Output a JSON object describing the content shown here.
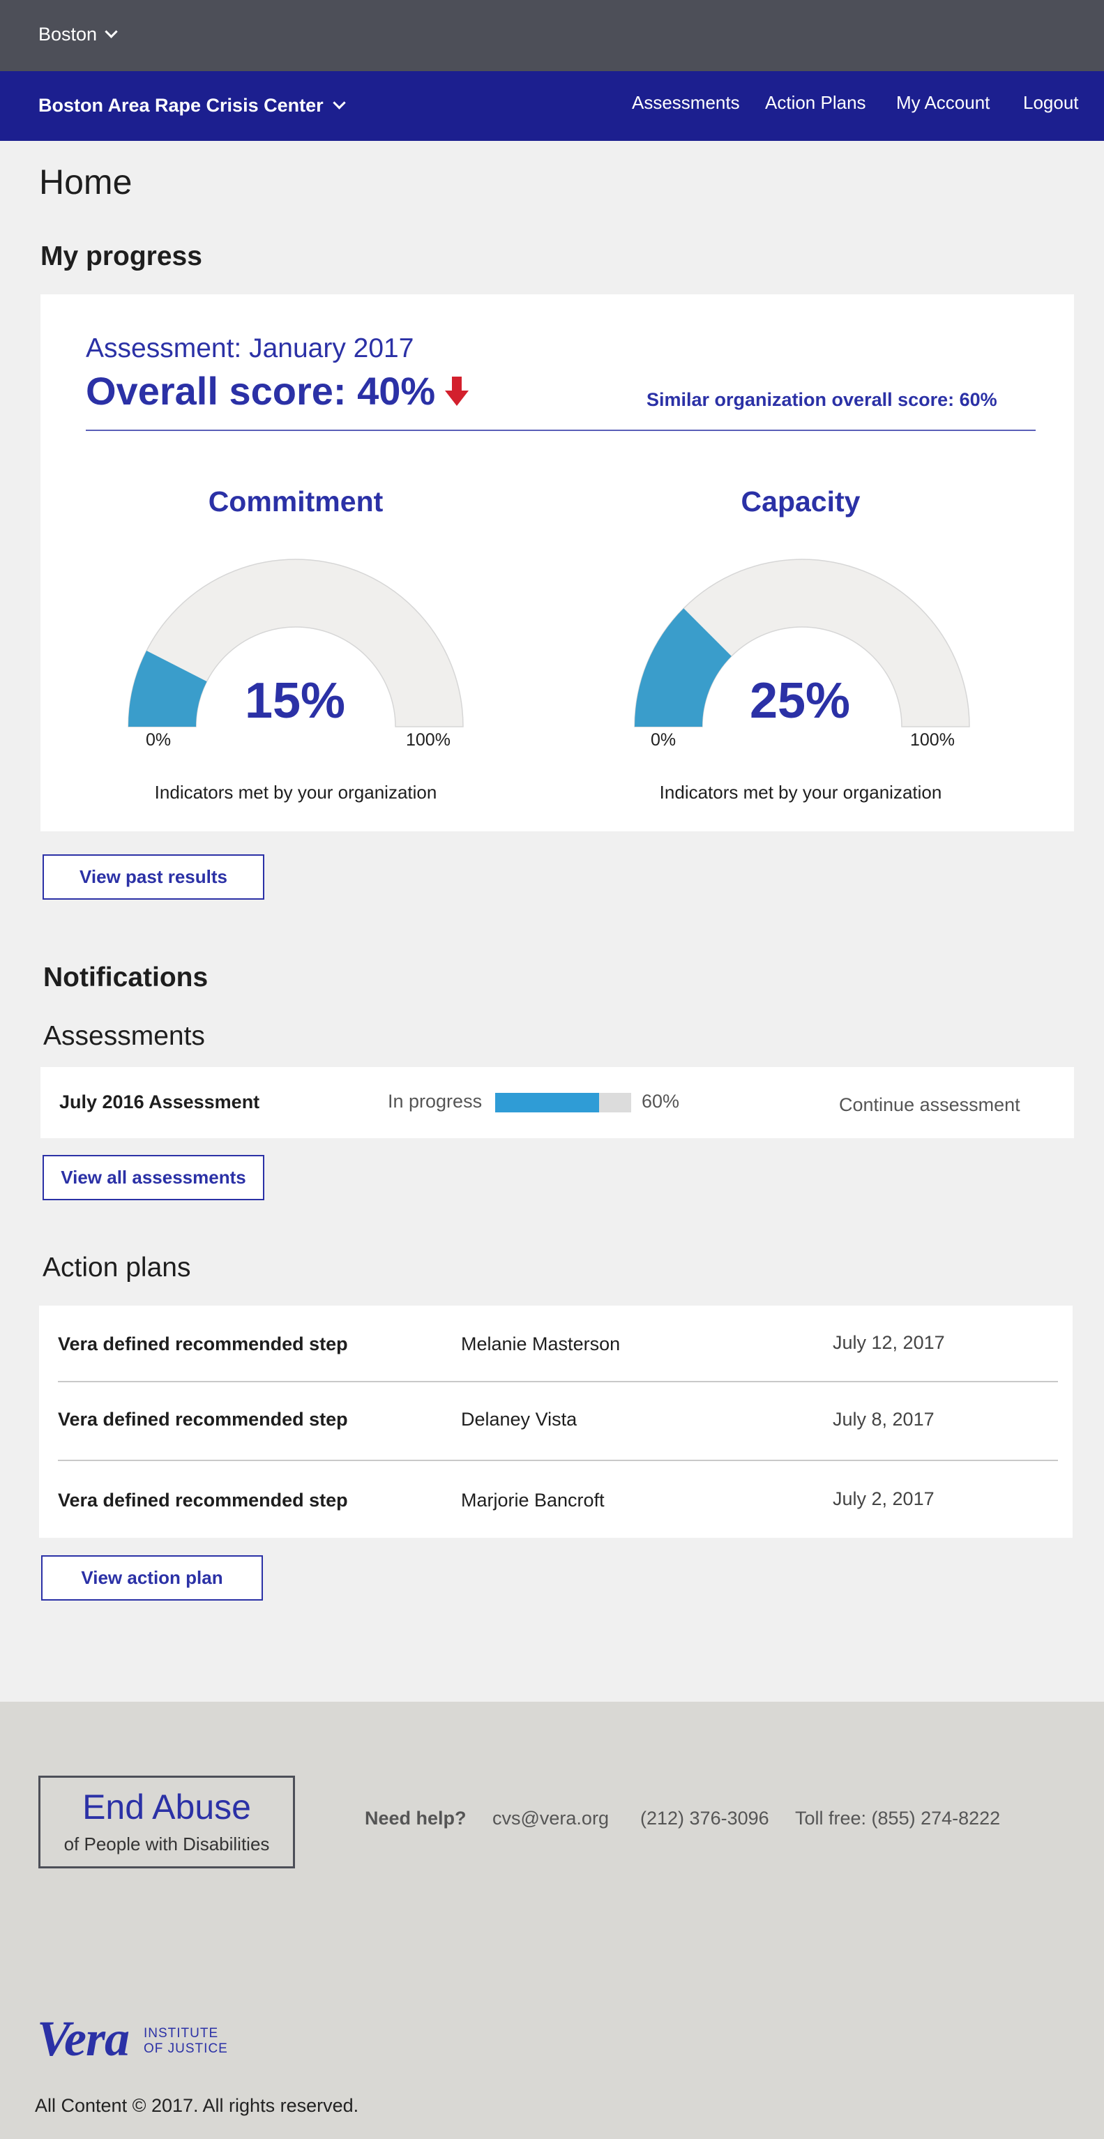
{
  "city": {
    "label": "Boston"
  },
  "org": {
    "label": "Boston Area Rape Crisis Center"
  },
  "nav": {
    "items": [
      "Assessments",
      "Action Plans",
      "My Account",
      "Logout"
    ]
  },
  "page": {
    "title": "Home"
  },
  "progress": {
    "section_title": "My progress",
    "assessment_label": "Assessment: January 2017",
    "overall_score": "Overall score: 40%",
    "similar_score": "Similar organization overall score: 60%",
    "gauges": [
      {
        "title": "Commitment",
        "value_text": "15%",
        "value": 0.15,
        "min_label": "0%",
        "max_label": "100%",
        "caption": "Indicators met by your organization"
      },
      {
        "title": "Capacity",
        "value_text": "25%",
        "value": 0.25,
        "min_label": "0%",
        "max_label": "100%",
        "caption": "Indicators met by your organization"
      }
    ],
    "past_results_button": "View past results"
  },
  "notifications": {
    "title": "Notifications",
    "assessments_title": "Assessments",
    "assessment_row": {
      "name": "July 2016 Assessment",
      "status": "In progress",
      "progress": 0.6,
      "progress_text": "60%",
      "continue_label": "Continue assessment"
    },
    "view_all_button": "View all assessments"
  },
  "action_plans": {
    "title": "Action plans",
    "rows": [
      {
        "step": "Vera defined recommended step",
        "person": "Melanie Masterson",
        "date": "July 12, 2017"
      },
      {
        "step": "Vera defined recommended step",
        "person": "Delaney Vista",
        "date": "July 8, 2017"
      },
      {
        "step": "Vera defined recommended step",
        "person": "Marjorie Bancroft",
        "date": "July 2, 2017"
      }
    ],
    "view_button": "View action plan"
  },
  "footer": {
    "logo_main": "End Abuse",
    "logo_sub": "of People with Disabilities",
    "help_label": "Need help?",
    "email": "cvs@vera.org",
    "phone": "(212) 376-3096",
    "toll_free": "Toll free: (855) 274-8222",
    "vera_logo": "Vera",
    "vera_institute_line1": "INSTITUTE",
    "vera_institute_line2": "OF JUSTICE",
    "copyright": "All Content © 2017. All rights reserved."
  },
  "colors": {
    "nav_blue": "#1c1f8f",
    "accent_blue": "#2b31a6",
    "gauge_fill": "#3a9dcb",
    "gauge_track": "#f0efed",
    "progress_fill": "#2f9cd6",
    "down_arrow": "#d3202d"
  },
  "icons": {
    "city_chevron": "chevron-down-icon",
    "org_chevron": "chevron-down-icon",
    "score_trend": "arrow-down-icon"
  }
}
